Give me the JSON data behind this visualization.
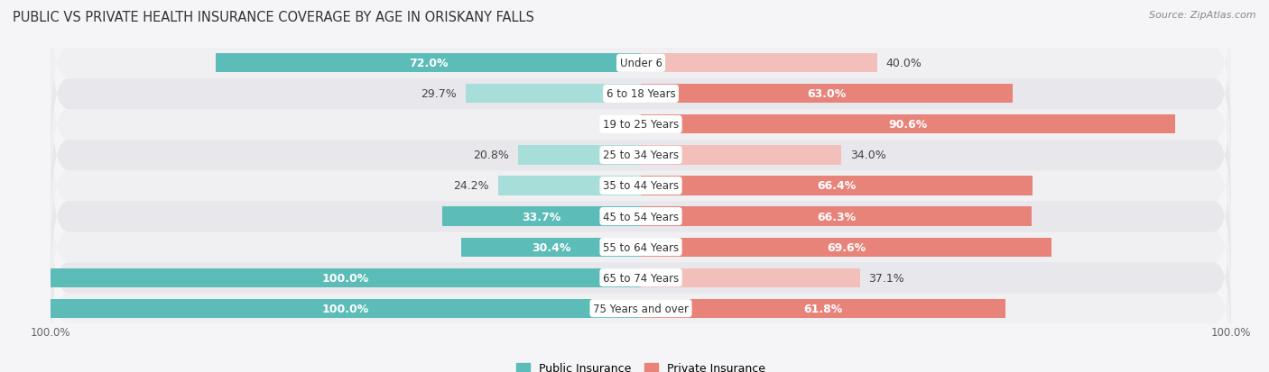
{
  "title": "PUBLIC VS PRIVATE HEALTH INSURANCE COVERAGE BY AGE IN ORISKANY FALLS",
  "source": "Source: ZipAtlas.com",
  "categories": [
    "Under 6",
    "6 to 18 Years",
    "19 to 25 Years",
    "25 to 34 Years",
    "35 to 44 Years",
    "45 to 54 Years",
    "55 to 64 Years",
    "65 to 74 Years",
    "75 Years and over"
  ],
  "public_values": [
    72.0,
    29.7,
    0.0,
    20.8,
    24.2,
    33.7,
    30.4,
    100.0,
    100.0
  ],
  "private_values": [
    40.0,
    63.0,
    90.6,
    34.0,
    66.4,
    66.3,
    69.6,
    37.1,
    61.8
  ],
  "public_color": "#5bbcb8",
  "private_color": "#e8837a",
  "public_color_light": "#a8deda",
  "private_color_light": "#f2bfba",
  "public_label": "Public Insurance",
  "private_label": "Private Insurance",
  "row_bg_odd": "#f0f0f2",
  "row_bg_even": "#e8e8ec",
  "max_val": 100.0,
  "label_fontsize": 9.0,
  "title_fontsize": 10.5,
  "source_fontsize": 8.0,
  "cat_fontsize": 8.5
}
